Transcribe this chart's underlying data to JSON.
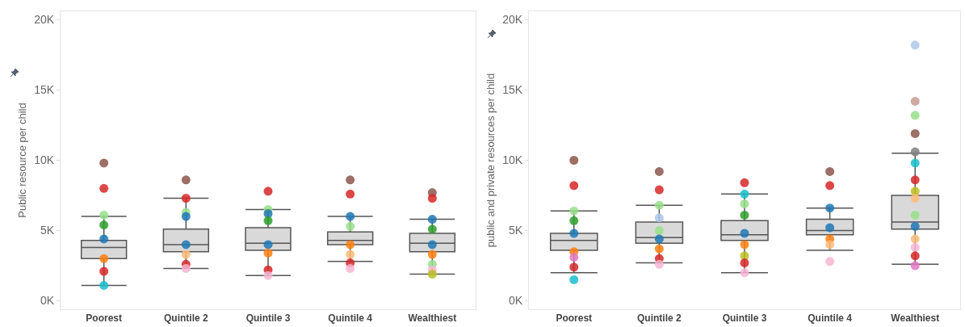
{
  "chart_data": [
    {
      "type": "box",
      "ylabel": "Public resource per child",
      "categories": [
        "Poorest",
        "Quintile 2",
        "Quintile 3",
        "Quintile 4",
        "Wealthiest"
      ],
      "boxes": [
        {
          "low": 1100,
          "q1": 3000,
          "median": 3800,
          "q3": 4300,
          "high": 6000
        },
        {
          "low": 2300,
          "q1": 3500,
          "median": 4000,
          "q3": 5100,
          "high": 7300
        },
        {
          "low": 1800,
          "q1": 3600,
          "median": 4100,
          "q3": 5200,
          "high": 6500
        },
        {
          "low": 2800,
          "q1": 4000,
          "median": 4300,
          "q3": 4900,
          "high": 6000
        },
        {
          "low": 1900,
          "q1": 3500,
          "median": 4100,
          "q3": 4800,
          "high": 5800
        }
      ],
      "color": "#d9d9d9",
      "ylim": [
        -600,
        20600
      ],
      "yticks": [
        {
          "value": 0,
          "label": "0K"
        },
        {
          "value": 5000,
          "label": "5K"
        },
        {
          "value": 10000,
          "label": "10K"
        },
        {
          "value": 15000,
          "label": "15K"
        },
        {
          "value": 20000,
          "label": "20K"
        }
      ],
      "grid": false,
      "series": [
        {
          "type": "scatter",
          "x": [
            "Poorest",
            "Poorest",
            "Poorest",
            "Poorest",
            "Poorest",
            "Poorest",
            "Poorest",
            "Poorest",
            "Quintile 2",
            "Quintile 2",
            "Quintile 2",
            "Quintile 2",
            "Quintile 2",
            "Quintile 2",
            "Quintile 2",
            "Quintile 2",
            "Quintile 3",
            "Quintile 3",
            "Quintile 3",
            "Quintile 3",
            "Quintile 3",
            "Quintile 3",
            "Quintile 3",
            "Quintile 3",
            "Quintile 4",
            "Quintile 4",
            "Quintile 4",
            "Quintile 4",
            "Quintile 4",
            "Quintile 4",
            "Quintile 4",
            "Quintile 4",
            "Wealthiest",
            "Wealthiest",
            "Wealthiest",
            "Wealthiest",
            "Wealthiest",
            "Wealthiest",
            "Wealthiest",
            "Wealthiest",
            "Wealthiest"
          ],
          "values": [
            9800,
            8000,
            6100,
            5400,
            4400,
            3000,
            2100,
            1100,
            8600,
            7300,
            6300,
            6000,
            4000,
            3300,
            2600,
            2300,
            7800,
            6500,
            6200,
            5700,
            4000,
            3400,
            2200,
            1800,
            8600,
            7600,
            6000,
            5300,
            4000,
            3300,
            2700,
            2300,
            7700,
            7300,
            5800,
            5100,
            4000,
            3300,
            2600,
            2200,
            1900
          ],
          "colors": [
            "#8c564b",
            "#d62728",
            "#98df8a",
            "#2ca02c",
            "#1f77b4",
            "#ff7f0e",
            "#d62728",
            "#17becf",
            "#8c564b",
            "#d62728",
            "#98df8a",
            "#1f77b4",
            "#1f77b4",
            "#ffbb78",
            "#d62728",
            "#f7b6d2",
            "#d62728",
            "#98df8a",
            "#1f77b4",
            "#2ca02c",
            "#1f77b4",
            "#ff7f0e",
            "#d62728",
            "#f7b6d2",
            "#8c564b",
            "#d62728",
            "#1f77b4",
            "#98df8a",
            "#ff7f0e",
            "#ffbb78",
            "#d62728",
            "#f7b6d2",
            "#8c564b",
            "#d62728",
            "#1f77b4",
            "#2ca02c",
            "#1f77b4",
            "#ff7f0e",
            "#98df8a",
            "#f7b6d2",
            "#bcbd22"
          ]
        }
      ]
    },
    {
      "type": "box",
      "ylabel": "public and private resources per child",
      "categories": [
        "Poorest",
        "Quintile 2",
        "Quintile 3",
        "Quintile 4",
        "Wealthiest"
      ],
      "boxes": [
        {
          "low": 2000,
          "q1": 3600,
          "median": 4300,
          "q3": 4800,
          "high": 6400
        },
        {
          "low": 2700,
          "q1": 4100,
          "median": 4500,
          "q3": 5600,
          "high": 6800
        },
        {
          "low": 2000,
          "q1": 4300,
          "median": 4700,
          "q3": 5700,
          "high": 7600
        },
        {
          "low": 3600,
          "q1": 4700,
          "median": 5000,
          "q3": 5800,
          "high": 6600
        },
        {
          "low": 2600,
          "q1": 5100,
          "median": 5600,
          "q3": 7500,
          "high": 10500
        }
      ],
      "color": "#d9d9d9",
      "ylim": [
        -600,
        20600
      ],
      "yticks": [
        {
          "value": 0,
          "label": "0K"
        },
        {
          "value": 5000,
          "label": "5K"
        },
        {
          "value": 10000,
          "label": "10K"
        },
        {
          "value": 15000,
          "label": "15K"
        },
        {
          "value": 20000,
          "label": "20K"
        }
      ],
      "grid": false,
      "series": [
        {
          "type": "scatter",
          "x": [
            "Poorest",
            "Poorest",
            "Poorest",
            "Poorest",
            "Poorest",
            "Poorest",
            "Poorest",
            "Poorest",
            "Poorest",
            "Quintile 2",
            "Quintile 2",
            "Quintile 2",
            "Quintile 2",
            "Quintile 2",
            "Quintile 2",
            "Quintile 2",
            "Quintile 2",
            "Quintile 2",
            "Quintile 3",
            "Quintile 3",
            "Quintile 3",
            "Quintile 3",
            "Quintile 3",
            "Quintile 3",
            "Quintile 3",
            "Quintile 3",
            "Quintile 3",
            "Quintile 4",
            "Quintile 4",
            "Quintile 4",
            "Quintile 4",
            "Quintile 4",
            "Quintile 4",
            "Quintile 4",
            "Wealthiest",
            "Wealthiest",
            "Wealthiest",
            "Wealthiest",
            "Wealthiest",
            "Wealthiest",
            "Wealthiest",
            "Wealthiest",
            "Wealthiest",
            "Wealthiest",
            "Wealthiest",
            "Wealthiest",
            "Wealthiest",
            "Wealthiest",
            "Wealthiest"
          ],
          "values": [
            10000,
            8200,
            6400,
            5700,
            4800,
            3500,
            3100,
            2400,
            1500,
            9200,
            7900,
            6800,
            5900,
            5000,
            4400,
            3700,
            3000,
            2600,
            8400,
            7600,
            6900,
            6100,
            4800,
            4000,
            3200,
            2700,
            2000,
            9200,
            8200,
            6600,
            5200,
            4400,
            4000,
            2800,
            18200,
            14200,
            13200,
            11900,
            10600,
            9800,
            8600,
            7800,
            7300,
            6100,
            5300,
            4400,
            3800,
            3200,
            2500
          ],
          "colors": [
            "#8c564b",
            "#d62728",
            "#98df8a",
            "#2ca02c",
            "#1f77b4",
            "#ff7f0e",
            "#e377c2",
            "#d62728",
            "#17becf",
            "#8c564b",
            "#d62728",
            "#98df8a",
            "#aec7e8",
            "#98df8a",
            "#1f77b4",
            "#ff7f0e",
            "#d62728",
            "#f7b6d2",
            "#d62728",
            "#17becf",
            "#98df8a",
            "#2ca02c",
            "#1f77b4",
            "#ff7f0e",
            "#bcbd22",
            "#d62728",
            "#f7b6d2",
            "#8c564b",
            "#d62728",
            "#1f77b4",
            "#1f77b4",
            "#ff7f0e",
            "#ffbb78",
            "#f7b6d2",
            "#aec7e8",
            "#c49c94",
            "#98df8a",
            "#8c564b",
            "#7f7f7f",
            "#17becf",
            "#d62728",
            "#bcbd22",
            "#ffbb78",
            "#98df8a",
            "#1f77b4",
            "#ffbb78",
            "#f7b6d2",
            "#d62728",
            "#e377c2"
          ]
        }
      ]
    }
  ]
}
